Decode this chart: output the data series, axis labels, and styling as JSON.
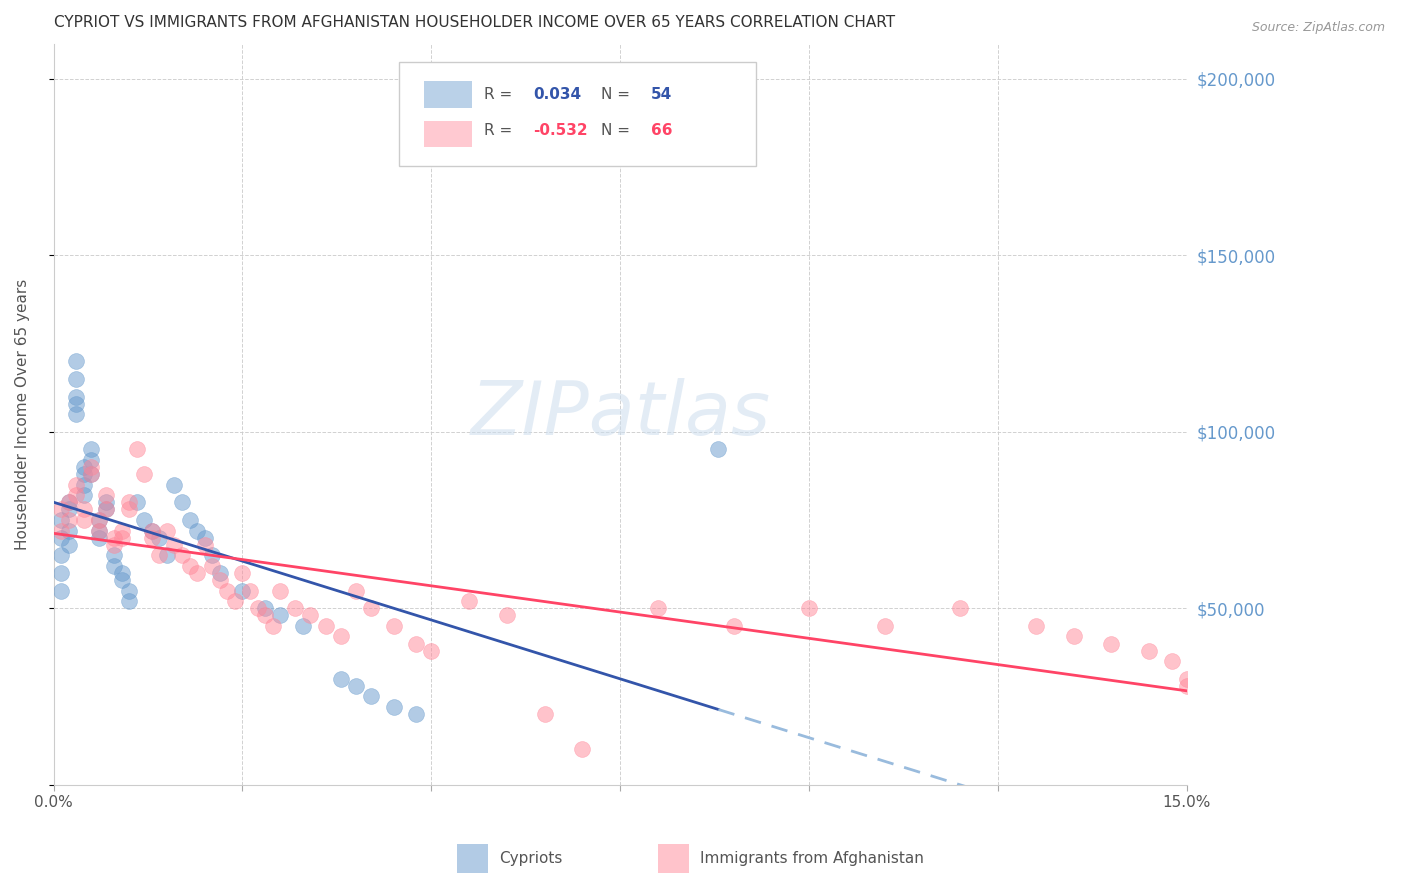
{
  "title": "CYPRIOT VS IMMIGRANTS FROM AFGHANISTAN HOUSEHOLDER INCOME OVER 65 YEARS CORRELATION CHART",
  "source": "Source: ZipAtlas.com",
  "ylabel": "Householder Income Over 65 years",
  "xlim": [
    0.0,
    0.15
  ],
  "ylim": [
    0,
    210000
  ],
  "ytick_positions": [
    0,
    50000,
    100000,
    150000,
    200000
  ],
  "ytick_labels": [
    "",
    "$50,000",
    "$100,000",
    "$150,000",
    "$200,000"
  ],
  "xtick_positions": [
    0.0,
    0.025,
    0.05,
    0.075,
    0.1,
    0.125,
    0.15
  ],
  "xtick_labels": [
    "0.0%",
    "",
    "",
    "",
    "",
    "",
    "15.0%"
  ],
  "grid_color": "#cccccc",
  "background_color": "#ffffff",
  "blue_color": "#6699cc",
  "pink_color": "#ff8899",
  "blue_line_color": "#3355aa",
  "pink_line_color": "#ff4466",
  "blue_dashed_color": "#99bbdd",
  "ytick_color": "#6699cc",
  "cypriot_r": 0.034,
  "cypriot_n": 54,
  "afghan_r": -0.532,
  "afghan_n": 66,
  "cypriot_x": [
    0.001,
    0.001,
    0.001,
    0.001,
    0.001,
    0.002,
    0.002,
    0.002,
    0.002,
    0.003,
    0.003,
    0.003,
    0.003,
    0.003,
    0.004,
    0.004,
    0.004,
    0.004,
    0.005,
    0.005,
    0.005,
    0.006,
    0.006,
    0.006,
    0.007,
    0.007,
    0.008,
    0.008,
    0.009,
    0.009,
    0.01,
    0.01,
    0.011,
    0.012,
    0.013,
    0.014,
    0.015,
    0.016,
    0.017,
    0.018,
    0.019,
    0.02,
    0.021,
    0.022,
    0.025,
    0.028,
    0.03,
    0.033,
    0.038,
    0.04,
    0.042,
    0.045,
    0.048,
    0.088
  ],
  "cypriot_y": [
    75000,
    60000,
    70000,
    65000,
    55000,
    80000,
    78000,
    72000,
    68000,
    120000,
    115000,
    110000,
    108000,
    105000,
    90000,
    88000,
    85000,
    82000,
    95000,
    92000,
    88000,
    75000,
    72000,
    70000,
    80000,
    78000,
    65000,
    62000,
    60000,
    58000,
    55000,
    52000,
    80000,
    75000,
    72000,
    70000,
    65000,
    85000,
    80000,
    75000,
    72000,
    70000,
    65000,
    60000,
    55000,
    50000,
    48000,
    45000,
    30000,
    28000,
    25000,
    22000,
    20000,
    95000
  ],
  "afghan_x": [
    0.001,
    0.001,
    0.002,
    0.002,
    0.003,
    0.003,
    0.004,
    0.004,
    0.005,
    0.005,
    0.006,
    0.006,
    0.007,
    0.007,
    0.008,
    0.008,
    0.009,
    0.009,
    0.01,
    0.01,
    0.011,
    0.012,
    0.013,
    0.013,
    0.014,
    0.015,
    0.016,
    0.017,
    0.018,
    0.019,
    0.02,
    0.021,
    0.022,
    0.023,
    0.024,
    0.025,
    0.026,
    0.027,
    0.028,
    0.029,
    0.03,
    0.032,
    0.034,
    0.036,
    0.038,
    0.04,
    0.042,
    0.045,
    0.048,
    0.05,
    0.055,
    0.06,
    0.065,
    0.07,
    0.08,
    0.09,
    0.1,
    0.11,
    0.12,
    0.13,
    0.135,
    0.14,
    0.145,
    0.148,
    0.15,
    0.15
  ],
  "afghan_y": [
    78000,
    72000,
    80000,
    75000,
    85000,
    82000,
    78000,
    75000,
    90000,
    88000,
    75000,
    72000,
    82000,
    78000,
    70000,
    68000,
    72000,
    70000,
    80000,
    78000,
    95000,
    88000,
    72000,
    70000,
    65000,
    72000,
    68000,
    65000,
    62000,
    60000,
    68000,
    62000,
    58000,
    55000,
    52000,
    60000,
    55000,
    50000,
    48000,
    45000,
    55000,
    50000,
    48000,
    45000,
    42000,
    55000,
    50000,
    45000,
    40000,
    38000,
    52000,
    48000,
    20000,
    10000,
    50000,
    45000,
    50000,
    45000,
    50000,
    45000,
    42000,
    40000,
    38000,
    35000,
    30000,
    28000
  ]
}
